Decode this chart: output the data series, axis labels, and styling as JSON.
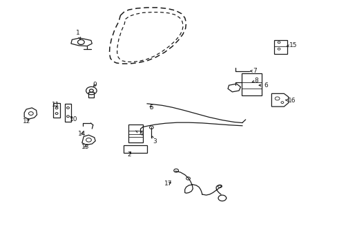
{
  "bg_color": "#ffffff",
  "line_color": "#1a1a1a",
  "fig_width": 4.89,
  "fig_height": 3.6,
  "dpi": 100,
  "door_outer": {
    "x": [
      0.355,
      0.365,
      0.38,
      0.405,
      0.435,
      0.465,
      0.495,
      0.52,
      0.538,
      0.548,
      0.552,
      0.55,
      0.542,
      0.528,
      0.51,
      0.488,
      0.462,
      0.435,
      0.408,
      0.382,
      0.36,
      0.343,
      0.332,
      0.325,
      0.322,
      0.323,
      0.328,
      0.338,
      0.35,
      0.355
    ],
    "y": [
      0.945,
      0.958,
      0.968,
      0.974,
      0.977,
      0.977,
      0.973,
      0.965,
      0.952,
      0.935,
      0.915,
      0.892,
      0.868,
      0.843,
      0.818,
      0.795,
      0.775,
      0.76,
      0.752,
      0.748,
      0.748,
      0.751,
      0.758,
      0.77,
      0.79,
      0.815,
      0.848,
      0.888,
      0.92,
      0.945
    ]
  },
  "door_inner": {
    "x": [
      0.37,
      0.382,
      0.4,
      0.422,
      0.448,
      0.474,
      0.498,
      0.518,
      0.532,
      0.54,
      0.543,
      0.54,
      0.532,
      0.518,
      0.5,
      0.478,
      0.455,
      0.432,
      0.41,
      0.39,
      0.373,
      0.36,
      0.352,
      0.347,
      0.345,
      0.346,
      0.35,
      0.358,
      0.367,
      0.37
    ],
    "y": [
      0.93,
      0.942,
      0.95,
      0.956,
      0.958,
      0.958,
      0.955,
      0.948,
      0.936,
      0.921,
      0.903,
      0.883,
      0.862,
      0.84,
      0.818,
      0.796,
      0.778,
      0.765,
      0.758,
      0.755,
      0.756,
      0.76,
      0.768,
      0.778,
      0.795,
      0.818,
      0.848,
      0.882,
      0.91,
      0.93
    ]
  }
}
